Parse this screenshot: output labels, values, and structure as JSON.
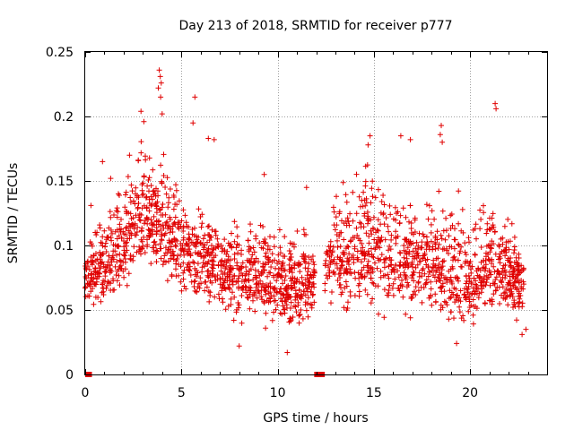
{
  "chart_data": {
    "type": "scatter",
    "title": "Day 213 of 2018, SRMTID for receiver p777",
    "xlabel": "GPS time / hours",
    "ylabel": "SRMTID / TECUs",
    "xlim": [
      0,
      24
    ],
    "ylim": [
      0,
      0.25
    ],
    "xticks": [
      0,
      5,
      10,
      15,
      20
    ],
    "xtick_labels": [
      "0",
      "5",
      "10",
      "15",
      "20"
    ],
    "yticks": [
      0,
      0.05,
      0.1,
      0.15,
      0.2,
      0.25
    ],
    "ytick_labels": [
      "0",
      "0.05",
      "0.1",
      "0.15",
      "0.2",
      "0.25"
    ],
    "grid": true,
    "marker": "+",
    "color": "#e00000",
    "zero_segments": [
      [
        0.0,
        0.35
      ],
      [
        11.9,
        12.45
      ]
    ],
    "series": [
      {
        "name": "SRMTID",
        "envelope": {
          "hours": [
            0,
            0.5,
            1,
            1.5,
            2,
            2.5,
            3,
            3.5,
            4,
            4.5,
            5,
            5.5,
            6,
            6.5,
            7,
            7.5,
            8,
            8.5,
            9,
            9.5,
            10,
            10.5,
            11,
            11.5,
            12,
            12.5,
            13,
            13.5,
            14,
            14.5,
            15,
            15.5,
            16,
            16.5,
            17,
            17.5,
            18,
            18.5,
            19,
            19.5,
            20,
            20.5,
            21,
            21.5,
            22,
            22.5,
            22.8
          ],
          "low": [
            0.055,
            0.05,
            0.04,
            0.045,
            0.05,
            0.06,
            0.07,
            0.07,
            0.065,
            0.06,
            0.055,
            0.05,
            0.045,
            0.04,
            0.04,
            0.035,
            0.035,
            0.035,
            0.035,
            0.035,
            0.03,
            0.03,
            0.03,
            0.035,
            0.04,
            0.045,
            0.04,
            0.04,
            0.04,
            0.04,
            0.04,
            0.04,
            0.035,
            0.035,
            0.035,
            0.035,
            0.035,
            0.03,
            0.03,
            0.03,
            0.03,
            0.035,
            0.04,
            0.04,
            0.04,
            0.035,
            0.035
          ],
          "high": [
            0.09,
            0.125,
            0.15,
            0.16,
            0.17,
            0.185,
            0.2,
            0.19,
            0.19,
            0.16,
            0.16,
            0.15,
            0.14,
            0.13,
            0.12,
            0.125,
            0.13,
            0.13,
            0.135,
            0.13,
            0.13,
            0.12,
            0.115,
            0.12,
            0.11,
            0.13,
            0.15,
            0.165,
            0.175,
            0.185,
            0.18,
            0.165,
            0.16,
            0.165,
            0.16,
            0.15,
            0.155,
            0.15,
            0.15,
            0.145,
            0.14,
            0.14,
            0.15,
            0.135,
            0.13,
            0.12,
            0.11
          ],
          "center": [
            0.075,
            0.08,
            0.085,
            0.095,
            0.105,
            0.115,
            0.125,
            0.12,
            0.11,
            0.105,
            0.1,
            0.095,
            0.09,
            0.085,
            0.08,
            0.078,
            0.075,
            0.075,
            0.075,
            0.072,
            0.07,
            0.068,
            0.065,
            0.07,
            0.075,
            0.085,
            0.09,
            0.095,
            0.1,
            0.1,
            0.1,
            0.095,
            0.09,
            0.09,
            0.088,
            0.085,
            0.085,
            0.08,
            0.078,
            0.075,
            0.075,
            0.078,
            0.085,
            0.085,
            0.08,
            0.075,
            0.07
          ]
        },
        "gap_hours": [
          11.95,
          12.45
        ],
        "samples_per_hour": 95,
        "notable_points": [
          {
            "x": 3.85,
            "y": 0.236
          },
          {
            "x": 3.9,
            "y": 0.231
          },
          {
            "x": 3.95,
            "y": 0.226
          },
          {
            "x": 3.8,
            "y": 0.222
          },
          {
            "x": 3.92,
            "y": 0.215
          },
          {
            "x": 5.7,
            "y": 0.215
          },
          {
            "x": 2.9,
            "y": 0.204
          },
          {
            "x": 3.05,
            "y": 0.196
          },
          {
            "x": 5.6,
            "y": 0.195
          },
          {
            "x": 4.0,
            "y": 0.202
          },
          {
            "x": 21.3,
            "y": 0.21
          },
          {
            "x": 21.35,
            "y": 0.206
          },
          {
            "x": 18.5,
            "y": 0.193
          },
          {
            "x": 18.45,
            "y": 0.186
          },
          {
            "x": 18.55,
            "y": 0.18
          },
          {
            "x": 14.8,
            "y": 0.185
          },
          {
            "x": 14.7,
            "y": 0.178
          },
          {
            "x": 16.4,
            "y": 0.185
          },
          {
            "x": 16.9,
            "y": 0.182
          },
          {
            "x": 6.4,
            "y": 0.183
          },
          {
            "x": 6.7,
            "y": 0.182
          },
          {
            "x": 10.5,
            "y": 0.017
          },
          {
            "x": 19.3,
            "y": 0.024
          },
          {
            "x": 8.0,
            "y": 0.022
          },
          {
            "x": 11.5,
            "y": 0.145
          },
          {
            "x": 9.3,
            "y": 0.155
          },
          {
            "x": 0.0,
            "y": 0.067
          },
          {
            "x": 0.3,
            "y": 0.131
          },
          {
            "x": 22.9,
            "y": 0.035
          },
          {
            "x": 22.7,
            "y": 0.031
          },
          {
            "x": 0.9,
            "y": 0.165
          },
          {
            "x": 2.3,
            "y": 0.17
          }
        ]
      }
    ]
  }
}
